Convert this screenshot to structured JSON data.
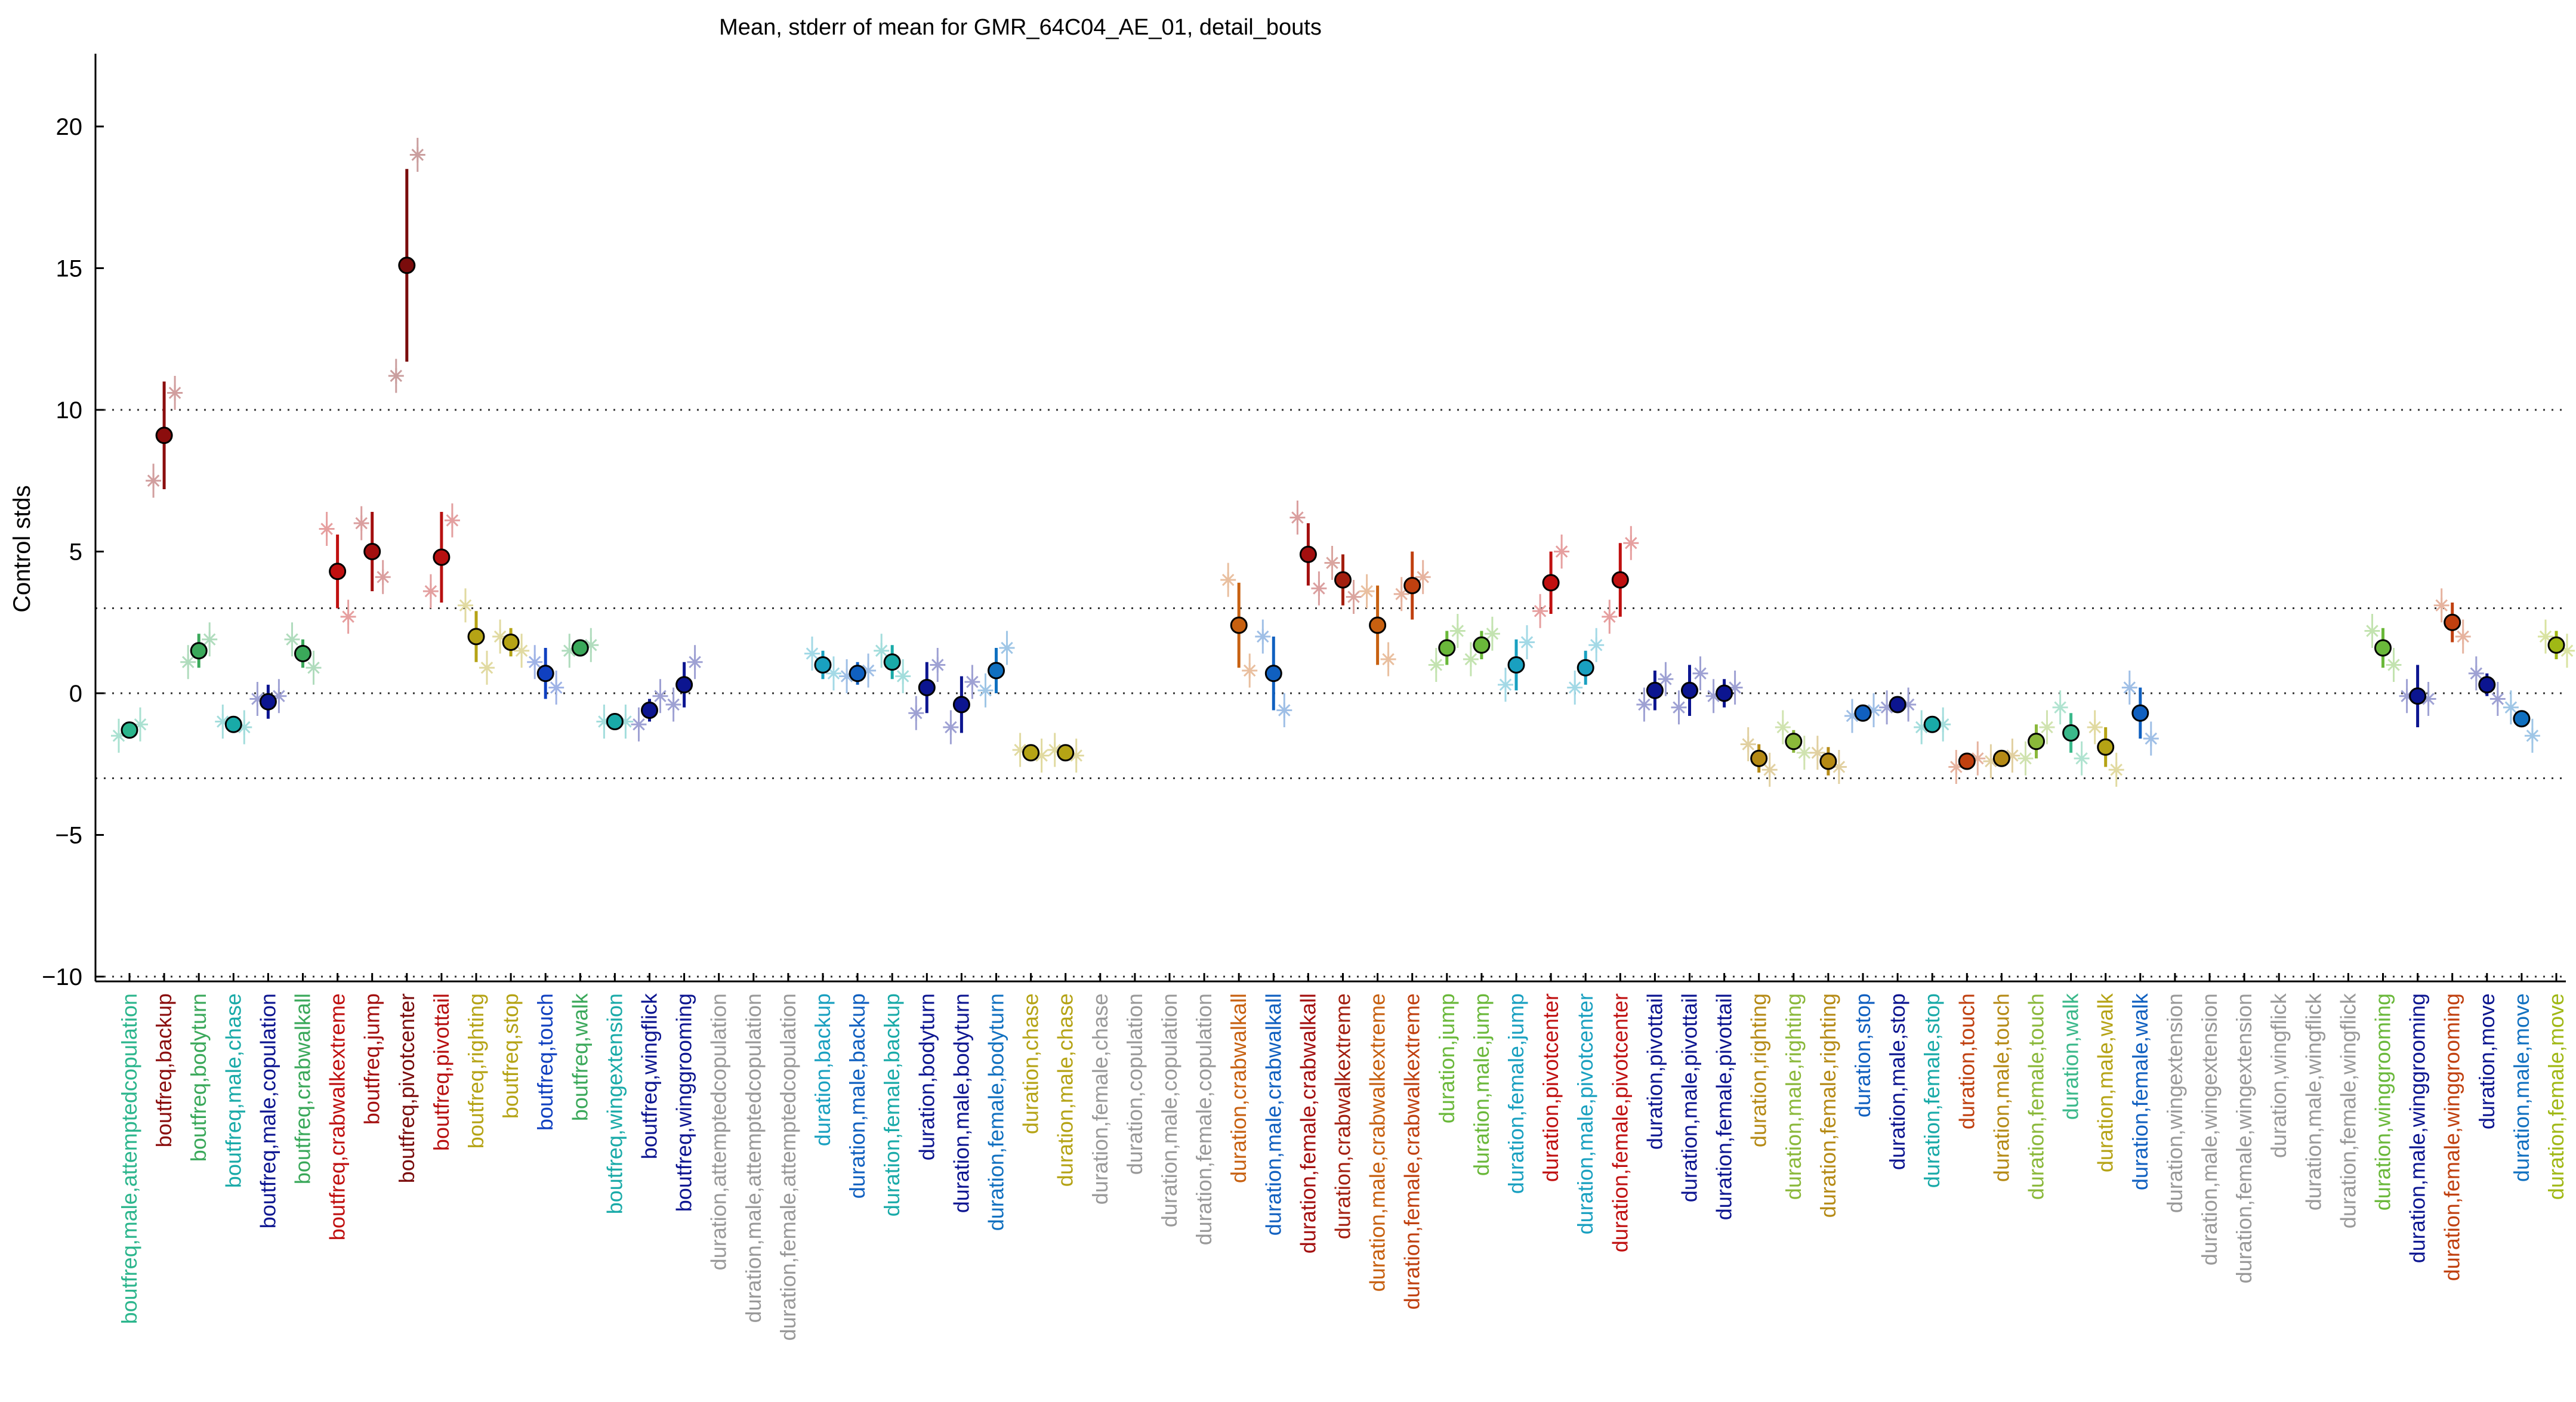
{
  "chart_data": {
    "type": "scatter",
    "title": "Mean, stderr of mean for GMR_64C04_AE_01, detail_bouts",
    "ylabel": "Control stds",
    "xlabel": "",
    "ylim": [
      -10.3,
      22.5
    ],
    "yticks": [
      -10,
      -5,
      0,
      5,
      10,
      15,
      20
    ],
    "ytick_labels": [
      "−10",
      "−5",
      "0",
      "5",
      "10",
      "15",
      "20"
    ],
    "reference_lines": [
      -3,
      0,
      3,
      10
    ],
    "grid": false,
    "legend": "none",
    "categories": [
      {
        "label": "boutfreq,male,attemptedcopulation",
        "color": "#2bb58c",
        "mean": -1.3,
        "sem": 0.1,
        "a": -1.5,
        "b": -1.1,
        "c": null
      },
      {
        "label": "boutfreq,backup",
        "color": "#8b0d0d",
        "mean": 9.1,
        "sem": 1.9,
        "a": 7.5,
        "b": 10.6,
        "c": null
      },
      {
        "label": "boutfreq,bodyturn",
        "color": "#3aa85a",
        "mean": 1.5,
        "sem": 0.6,
        "a": 1.1,
        "b": 1.9,
        "c": null
      },
      {
        "label": "boutfreq,male,chase",
        "color": "#19aaa8",
        "mean": -1.1,
        "sem": 0.1,
        "a": -1.0,
        "b": -1.2,
        "c": null
      },
      {
        "label": "boutfreq,male,copulation",
        "color": "#0c1590",
        "mean": -0.3,
        "sem": 0.6,
        "a": -0.2,
        "b": -0.1,
        "c": null
      },
      {
        "label": "boutfreq,crabwalkall",
        "color": "#3aa85a",
        "mean": 1.4,
        "sem": 0.5,
        "a": 1.9,
        "b": 0.9,
        "c": null
      },
      {
        "label": "boutfreq,crabwalkextreme",
        "color": "#c01010",
        "mean": 4.3,
        "sem": 1.3,
        "a": 5.8,
        "b": 2.7,
        "c": null
      },
      {
        "label": "boutfreq,jump",
        "color": "#a30f0f",
        "mean": 5.0,
        "sem": 1.4,
        "a": 6.0,
        "b": 4.1,
        "c": null
      },
      {
        "label": "boutfreq,pivotcenter",
        "color": "#7a0c0c",
        "mean": 15.1,
        "sem": 3.4,
        "a": 11.2,
        "b": 19.0,
        "c": null
      },
      {
        "label": "boutfreq,pivottail",
        "color": "#b81010",
        "mean": 4.8,
        "sem": 1.6,
        "a": 3.6,
        "b": 6.1,
        "c": null
      },
      {
        "label": "boutfreq,righting",
        "color": "#b5a315",
        "mean": 2.0,
        "sem": 0.9,
        "a": 3.1,
        "b": 0.9,
        "c": null
      },
      {
        "label": "boutfreq,stop",
        "color": "#b5a315",
        "mean": 1.8,
        "sem": 0.5,
        "a": 2.0,
        "b": 1.5,
        "c": null
      },
      {
        "label": "boutfreq,touch",
        "color": "#1040c0",
        "mean": 0.7,
        "sem": 0.9,
        "a": 1.1,
        "b": 0.2,
        "c": null
      },
      {
        "label": "boutfreq,walk",
        "color": "#3aa85a",
        "mean": 1.6,
        "sem": 0.3,
        "a": 1.5,
        "b": 1.7,
        "c": null
      },
      {
        "label": "boutfreq,wingextension",
        "color": "#19aaa8",
        "mean": -1.0,
        "sem": 0.1,
        "a": -1.0,
        "b": -1.0,
        "c": null
      },
      {
        "label": "boutfreq,wingflick",
        "color": "#0c1590",
        "mean": -0.6,
        "sem": 0.4,
        "a": -1.1,
        "b": -0.1,
        "c": null
      },
      {
        "label": "boutfreq,winggrooming",
        "color": "#0c1590",
        "mean": 0.3,
        "sem": 0.8,
        "a": -0.4,
        "b": 1.1,
        "c": null
      },
      {
        "label": "duration,attemptedcopulation",
        "color": "#999999",
        "mean": null,
        "sem": null,
        "a": null,
        "b": null,
        "c": null
      },
      {
        "label": "duration,male,attemptedcopulation",
        "color": "#999999",
        "mean": null,
        "sem": null,
        "a": null,
        "b": null,
        "c": null
      },
      {
        "label": "duration,female,attemptedcopulation",
        "color": "#999999",
        "mean": null,
        "sem": null,
        "a": null,
        "b": null,
        "c": null
      },
      {
        "label": "duration,backup",
        "color": "#19a0c0",
        "mean": 1.0,
        "sem": 0.5,
        "a": 1.4,
        "b": 0.7,
        "c": null
      },
      {
        "label": "duration,male,backup",
        "color": "#1060c0",
        "mean": 0.7,
        "sem": 0.4,
        "a": 0.6,
        "b": 0.8,
        "c": null
      },
      {
        "label": "duration,female,backup",
        "color": "#19aaa8",
        "mean": 1.1,
        "sem": 0.6,
        "a": 1.5,
        "b": 0.6,
        "c": null
      },
      {
        "label": "duration,bodyturn",
        "color": "#0c1590",
        "mean": 0.2,
        "sem": 0.9,
        "a": -0.7,
        "b": 1.0,
        "c": null
      },
      {
        "label": "duration,male,bodyturn",
        "color": "#0c1590",
        "mean": -0.4,
        "sem": 1.0,
        "a": -1.2,
        "b": 0.4,
        "c": null
      },
      {
        "label": "duration,female,bodyturn",
        "color": "#1070c0",
        "mean": 0.8,
        "sem": 0.8,
        "a": 0.1,
        "b": 1.6,
        "c": null
      },
      {
        "label": "duration,chase",
        "color": "#b5a315",
        "mean": -2.1,
        "sem": 0.1,
        "a": -2.0,
        "b": -2.2,
        "c": null
      },
      {
        "label": "duration,male,chase",
        "color": "#b5a315",
        "mean": -2.1,
        "sem": 0.1,
        "a": -2.0,
        "b": -2.2,
        "c": null
      },
      {
        "label": "duration,female,chase",
        "color": "#999999",
        "mean": null,
        "sem": null,
        "a": null,
        "b": null,
        "c": null
      },
      {
        "label": "duration,copulation",
        "color": "#999999",
        "mean": null,
        "sem": null,
        "a": null,
        "b": null,
        "c": null
      },
      {
        "label": "duration,male,copulation",
        "color": "#999999",
        "mean": null,
        "sem": null,
        "a": null,
        "b": null,
        "c": null
      },
      {
        "label": "duration,female,copulation",
        "color": "#999999",
        "mean": null,
        "sem": null,
        "a": null,
        "b": null,
        "c": null
      },
      {
        "label": "duration,crabwalkall",
        "color": "#c76010",
        "mean": 2.4,
        "sem": 1.5,
        "a": 4.0,
        "b": 0.8,
        "c": null
      },
      {
        "label": "duration,male,crabwalkall",
        "color": "#1060c0",
        "mean": 0.7,
        "sem": 1.3,
        "a": 2.0,
        "b": -0.6,
        "c": null
      },
      {
        "label": "duration,female,crabwalkall",
        "color": "#a30f0f",
        "mean": 4.9,
        "sem": 1.1,
        "a": 6.2,
        "b": 3.7,
        "c": null
      },
      {
        "label": "duration,crabwalkextreme",
        "color": "#a31f0f",
        "mean": 4.0,
        "sem": 0.9,
        "a": 4.6,
        "b": 3.4,
        "c": null
      },
      {
        "label": "duration,male,crabwalkextreme",
        "color": "#c76010",
        "mean": 2.4,
        "sem": 1.4,
        "a": 3.6,
        "b": 1.2,
        "c": null
      },
      {
        "label": "duration,female,crabwalkextreme",
        "color": "#c0400f",
        "mean": 3.8,
        "sem": 1.2,
        "a": 3.5,
        "b": 4.1,
        "c": null
      },
      {
        "label": "duration,jump",
        "color": "#6ab83a",
        "mean": 1.6,
        "sem": 0.6,
        "a": 1.0,
        "b": 2.2,
        "c": null
      },
      {
        "label": "duration,male,jump",
        "color": "#6ab83a",
        "mean": 1.7,
        "sem": 0.5,
        "a": 1.2,
        "b": 2.1,
        "c": null
      },
      {
        "label": "duration,female,jump",
        "color": "#19a0c0",
        "mean": 1.0,
        "sem": 0.9,
        "a": 0.3,
        "b": 1.8,
        "c": null
      },
      {
        "label": "duration,pivotcenter",
        "color": "#c01010",
        "mean": 3.9,
        "sem": 1.1,
        "a": 2.9,
        "b": 5.0,
        "c": null
      },
      {
        "label": "duration,male,pivotcenter",
        "color": "#19a0c0",
        "mean": 0.9,
        "sem": 0.6,
        "a": 0.2,
        "b": 1.7,
        "c": null
      },
      {
        "label": "duration,female,pivotcenter",
        "color": "#c01010",
        "mean": 4.0,
        "sem": 1.3,
        "a": 2.7,
        "b": 5.3,
        "c": null
      },
      {
        "label": "duration,pivottail",
        "color": "#0c1590",
        "mean": 0.1,
        "sem": 0.7,
        "a": -0.4,
        "b": 0.5,
        "c": null
      },
      {
        "label": "duration,male,pivottail",
        "color": "#0c1590",
        "mean": 0.1,
        "sem": 0.9,
        "a": -0.5,
        "b": 0.7,
        "c": null
      },
      {
        "label": "duration,female,pivottail",
        "color": "#0c1590",
        "mean": 0.0,
        "sem": 0.5,
        "a": -0.1,
        "b": 0.2,
        "c": null
      },
      {
        "label": "duration,righting",
        "color": "#b58a15",
        "mean": -2.3,
        "sem": 0.5,
        "a": -1.8,
        "b": -2.7,
        "c": null
      },
      {
        "label": "duration,male,righting",
        "color": "#8ab83a",
        "mean": -1.7,
        "sem": 0.4,
        "a": -1.2,
        "b": -2.1,
        "c": null
      },
      {
        "label": "duration,female,righting",
        "color": "#b58a15",
        "mean": -2.4,
        "sem": 0.5,
        "a": -2.1,
        "b": -2.6,
        "c": null
      },
      {
        "label": "duration,stop",
        "color": "#1060c0",
        "mean": -0.7,
        "sem": 0.2,
        "a": -0.8,
        "b": -0.6,
        "c": null
      },
      {
        "label": "duration,male,stop",
        "color": "#0c1590",
        "mean": -0.4,
        "sem": 0.1,
        "a": -0.5,
        "b": -0.4,
        "c": null
      },
      {
        "label": "duration,female,stop",
        "color": "#19aaa8",
        "mean": -1.1,
        "sem": 0.2,
        "a": -1.2,
        "b": -1.1,
        "c": null
      },
      {
        "label": "duration,touch",
        "color": "#c0400f",
        "mean": -2.4,
        "sem": 0.3,
        "a": -2.6,
        "b": -2.3,
        "c": null
      },
      {
        "label": "duration,male,touch",
        "color": "#b58a15",
        "mean": -2.3,
        "sem": 0.3,
        "a": -2.4,
        "b": -2.2,
        "c": null
      },
      {
        "label": "duration,female,touch",
        "color": "#8ab83a",
        "mean": -1.7,
        "sem": 0.6,
        "a": -2.3,
        "b": -1.2,
        "c": null
      },
      {
        "label": "duration,walk",
        "color": "#3ab88a",
        "mean": -1.4,
        "sem": 0.7,
        "a": -0.5,
        "b": -2.3,
        "c": null
      },
      {
        "label": "duration,male,walk",
        "color": "#b5a315",
        "mean": -1.9,
        "sem": 0.7,
        "a": -1.2,
        "b": -2.7,
        "c": null
      },
      {
        "label": "duration,female,walk",
        "color": "#1060c0",
        "mean": -0.7,
        "sem": 0.9,
        "a": 0.2,
        "b": -1.6,
        "c": null
      },
      {
        "label": "duration,wingextension",
        "color": "#999999",
        "mean": null,
        "sem": null,
        "a": null,
        "b": null,
        "c": null
      },
      {
        "label": "duration,male,wingextension",
        "color": "#999999",
        "mean": null,
        "sem": null,
        "a": null,
        "b": null,
        "c": null
      },
      {
        "label": "duration,female,wingextension",
        "color": "#999999",
        "mean": null,
        "sem": null,
        "a": null,
        "b": null,
        "c": null
      },
      {
        "label": "duration,wingflick",
        "color": "#999999",
        "mean": null,
        "sem": null,
        "a": null,
        "b": null,
        "c": null
      },
      {
        "label": "duration,male,wingflick",
        "color": "#999999",
        "mean": null,
        "sem": null,
        "a": null,
        "b": null,
        "c": null
      },
      {
        "label": "duration,female,wingflick",
        "color": "#999999",
        "mean": null,
        "sem": null,
        "a": null,
        "b": null,
        "c": null
      },
      {
        "label": "duration,winggrooming",
        "color": "#6ab83a",
        "mean": 1.6,
        "sem": 0.7,
        "a": 2.2,
        "b": 1.0,
        "c": null
      },
      {
        "label": "duration,male,winggrooming",
        "color": "#0c1590",
        "mean": -0.1,
        "sem": 1.1,
        "a": -0.1,
        "b": -0.2,
        "c": null
      },
      {
        "label": "duration,female,winggrooming",
        "color": "#c0400f",
        "mean": 2.5,
        "sem": 0.7,
        "a": 3.1,
        "b": 2.0,
        "c": null
      },
      {
        "label": "duration,move",
        "color": "#0c1590",
        "mean": 0.3,
        "sem": 0.4,
        "a": 0.7,
        "b": -0.2,
        "c": null
      },
      {
        "label": "duration,male,move",
        "color": "#1070c0",
        "mean": -0.9,
        "sem": 0.2,
        "a": -0.5,
        "b": -1.5,
        "c": null
      },
      {
        "label": "duration,female,move",
        "color": "#a0b815",
        "mean": 1.7,
        "sem": 0.5,
        "a": 2.0,
        "b": 1.5,
        "c": null
      }
    ]
  }
}
